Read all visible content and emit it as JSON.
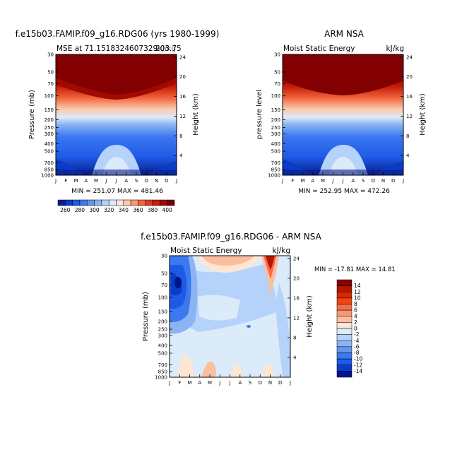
{
  "chart_data": [
    {
      "type": "heatmap",
      "title": "f.e15b03.FAMIP.f09_g16.RDG06 (yrs 1980-1999)",
      "subtitle_left": "MSE at 71.1518324607329",
      "subtitle_right": "kJ/kg",
      "subtitle_overlap": "203.75",
      "ylabel": "Pressure (mb)",
      "ylabel_right": "Height (km)",
      "x_ticks": [
        "J",
        "F",
        "M",
        "A",
        "M",
        "J",
        "J",
        "A",
        "S",
        "O",
        "N",
        "D",
        "J"
      ],
      "y_ticks": [
        "30",
        "50",
        "70",
        "100",
        "150",
        "200",
        "250",
        "300",
        "400",
        "500",
        "700",
        "850",
        "1000"
      ],
      "y_ticks_right": [
        "24",
        "20",
        "16",
        "12",
        "8",
        "4"
      ],
      "stats": "MIN = 251.07 MAX = 481.46",
      "value_range": [
        251.07,
        481.46
      ]
    },
    {
      "type": "heatmap",
      "title": "ARM NSA",
      "subtitle_left": "Moist Static Energy",
      "subtitle_right": "kJ/kg",
      "ylabel": "pressure level",
      "ylabel_right": "Height (km)",
      "x_ticks": [
        "J",
        "F",
        "M",
        "A",
        "M",
        "J",
        "J",
        "A",
        "S",
        "O",
        "N",
        "D",
        "J"
      ],
      "y_ticks": [
        "30",
        "50",
        "70",
        "100",
        "150",
        "200",
        "250",
        "300",
        "400",
        "500",
        "700",
        "850",
        "1000"
      ],
      "y_ticks_right": [
        "24",
        "20",
        "16",
        "12",
        "8",
        "4"
      ],
      "stats": "MIN = 252.95 MAX = 472.26",
      "value_range": [
        252.95,
        472.26
      ]
    },
    {
      "type": "heatmap",
      "title": "f.e15b03.FAMIP.f09_g16.RDG06 - ARM NSA",
      "subtitle_left": "Moist Static Energy",
      "subtitle_right": "kJ/kg",
      "ylabel": "Pressure (mb)",
      "ylabel_right": "Height (km)",
      "x_ticks": [
        "J",
        "F",
        "M",
        "A",
        "M",
        "J",
        "J",
        "A",
        "S",
        "O",
        "N",
        "D",
        "J"
      ],
      "y_ticks": [
        "30",
        "50",
        "70",
        "100",
        "150",
        "200",
        "250",
        "300",
        "400",
        "500",
        "700",
        "850",
        "1000"
      ],
      "y_ticks_right": [
        "24",
        "20",
        "16",
        "12",
        "8",
        "4"
      ],
      "stats": "MIN = -17.81 MAX =  14.81",
      "value_range": [
        -17.81,
        14.81
      ]
    }
  ],
  "colorbar_top": {
    "labels": [
      "260",
      "280",
      "300",
      "320",
      "340",
      "360",
      "380",
      "400"
    ],
    "colors": [
      "#0a1e8c",
      "#0a3cc8",
      "#1e5ae6",
      "#3c78f0",
      "#6496f0",
      "#8cb4f5",
      "#b4d2fa",
      "#dcebfa",
      "#fae6dc",
      "#fac8aa",
      "#fa9678",
      "#f0643c",
      "#dc3c1e",
      "#c81e0a",
      "#a00a00",
      "#780000"
    ]
  },
  "colorbar_diff": {
    "labels": [
      "14",
      "12",
      "10",
      "8",
      "6",
      "4",
      "2",
      "0",
      "-2",
      "-4",
      "-6",
      "-8",
      "-10",
      "-12",
      "-14"
    ],
    "colors": [
      "#8c0000",
      "#b41400",
      "#dc2800",
      "#f04614",
      "#f56e46",
      "#fa9678",
      "#fcbea0",
      "#fde6d2",
      "#dcebfa",
      "#b4d2fa",
      "#8cb4f5",
      "#6496f0",
      "#3c78f0",
      "#1e5ae6",
      "#0a3cc8",
      "#00148c"
    ]
  }
}
